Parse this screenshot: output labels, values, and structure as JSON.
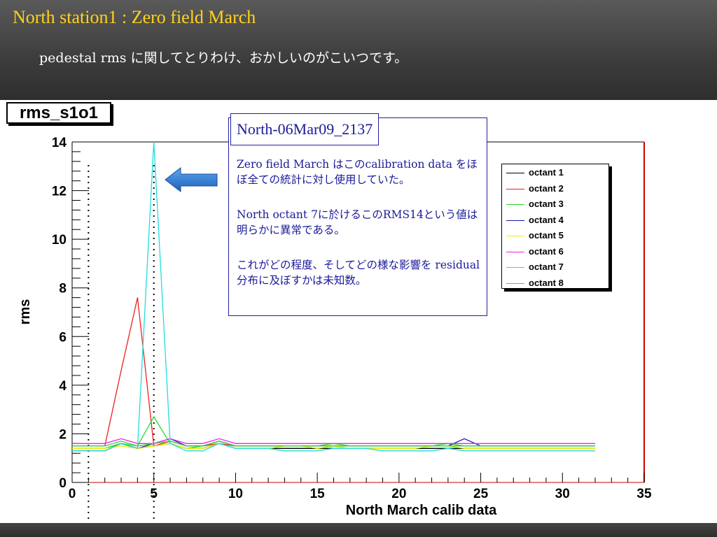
{
  "slide": {
    "title": "North station1 : Zero field March",
    "subtitle": "pedestal rms に関してとりわけ、おかしいのがこいつです。"
  },
  "histogram_name": "rms_s1o1",
  "annotation": {
    "title": "North-06Mar09_2137",
    "paragraphs": [
      "Zero field March はこのcalibration data をほぼ全ての統計に対し使用していた。",
      "North octant 7に於けるこのRMS14という値は明らかに異常である。",
      "これがどの程度、そしてどの様な影響を residual 分布に及ぼすかは未知数。"
    ]
  },
  "colors": {
    "title": "#ffd21a",
    "annotation_text": "#1a1a9a",
    "arrow": "#1f6fc8",
    "frame_right": "#cc0000"
  },
  "chart_data": {
    "type": "line",
    "xlabel": "North March calib data",
    "ylabel": "rms",
    "xlim": [
      0,
      35
    ],
    "ylim": [
      0,
      14
    ],
    "x_ticks": [
      0,
      5,
      10,
      15,
      20,
      25,
      30,
      35
    ],
    "y_ticks": [
      0,
      2,
      4,
      6,
      8,
      10,
      12,
      14
    ],
    "vertical_markers": [
      1,
      5
    ],
    "x": [
      0,
      1,
      2,
      3,
      4,
      5,
      6,
      7,
      8,
      9,
      10,
      11,
      12,
      13,
      14,
      15,
      16,
      17,
      18,
      19,
      20,
      21,
      22,
      23,
      24,
      25,
      26,
      27,
      28,
      29,
      30,
      31,
      32
    ],
    "legend_position": "top-right",
    "series": [
      {
        "name": "octant 1",
        "color": "#000000",
        "values": [
          1.4,
          1.4,
          1.4,
          1.6,
          1.4,
          1.5,
          1.6,
          1.4,
          1.4,
          1.6,
          1.4,
          1.4,
          1.4,
          1.4,
          1.4,
          1.4,
          1.4,
          1.4,
          1.4,
          1.4,
          1.4,
          1.4,
          1.4,
          1.4,
          1.4,
          1.4,
          1.4,
          1.4,
          1.4,
          1.4,
          1.4,
          1.4,
          1.4
        ]
      },
      {
        "name": "octant 2",
        "color": "#ee2020",
        "values": [
          1.5,
          1.5,
          1.5,
          4.6,
          7.6,
          1.5,
          1.7,
          1.5,
          1.5,
          1.6,
          1.5,
          1.5,
          1.5,
          1.5,
          1.5,
          1.5,
          1.5,
          1.5,
          1.5,
          1.5,
          1.5,
          1.5,
          1.5,
          1.5,
          1.5,
          1.5,
          1.5,
          1.5,
          1.5,
          1.5,
          1.5,
          1.5,
          1.5
        ]
      },
      {
        "name": "octant 3",
        "color": "#22dd22",
        "values": [
          1.4,
          1.4,
          1.4,
          1.6,
          1.5,
          2.7,
          1.6,
          1.4,
          1.5,
          1.7,
          1.5,
          1.5,
          1.5,
          1.5,
          1.5,
          1.5,
          1.6,
          1.5,
          1.5,
          1.5,
          1.5,
          1.5,
          1.5,
          1.6,
          1.5,
          1.5,
          1.5,
          1.5,
          1.5,
          1.5,
          1.5,
          1.5,
          1.5
        ]
      },
      {
        "name": "octant 4",
        "color": "#1a1aaa",
        "values": [
          1.3,
          1.3,
          1.3,
          1.6,
          1.4,
          1.6,
          1.8,
          1.5,
          1.5,
          1.7,
          1.5,
          1.5,
          1.5,
          1.5,
          1.5,
          1.5,
          1.5,
          1.5,
          1.5,
          1.5,
          1.5,
          1.5,
          1.5,
          1.5,
          1.8,
          1.5,
          1.5,
          1.5,
          1.5,
          1.5,
          1.5,
          1.5,
          1.5
        ]
      },
      {
        "name": "octant 5",
        "color": "#eeee00",
        "values": [
          1.4,
          1.4,
          1.4,
          1.5,
          1.4,
          1.5,
          1.6,
          1.4,
          1.4,
          1.6,
          1.4,
          1.4,
          1.4,
          1.5,
          1.5,
          1.4,
          1.5,
          1.4,
          1.4,
          1.4,
          1.4,
          1.4,
          1.5,
          1.5,
          1.4,
          1.4,
          1.4,
          1.4,
          1.4,
          1.4,
          1.4,
          1.4,
          1.4
        ]
      },
      {
        "name": "octant 6",
        "color": "#ee22ee",
        "values": [
          1.6,
          1.6,
          1.6,
          1.8,
          1.6,
          1.6,
          1.8,
          1.6,
          1.6,
          1.8,
          1.6,
          1.6,
          1.6,
          1.6,
          1.6,
          1.6,
          1.6,
          1.6,
          1.6,
          1.6,
          1.6,
          1.6,
          1.6,
          1.6,
          1.6,
          1.6,
          1.6,
          1.6,
          1.6,
          1.6,
          1.6,
          1.6,
          1.6
        ]
      },
      {
        "name": "octant 7",
        "color": "#22dddd",
        "values": [
          1.3,
          1.3,
          1.3,
          1.6,
          1.4,
          14,
          1.6,
          1.3,
          1.3,
          1.6,
          1.4,
          1.4,
          1.4,
          1.3,
          1.3,
          1.3,
          1.4,
          1.4,
          1.4,
          1.3,
          1.3,
          1.3,
          1.3,
          1.4,
          1.3,
          1.3,
          1.3,
          1.3,
          1.3,
          1.3,
          1.3,
          1.3,
          1.3
        ]
      },
      {
        "name": "octant 8",
        "color": "#44cc44",
        "values": [
          1.5,
          1.5,
          1.5,
          1.7,
          1.5,
          1.6,
          1.7,
          1.5,
          1.5,
          1.7,
          1.5,
          1.5,
          1.5,
          1.5,
          1.5,
          1.5,
          1.5,
          1.5,
          1.5,
          1.5,
          1.5,
          1.5,
          1.5,
          1.5,
          1.5,
          1.5,
          1.5,
          1.5,
          1.5,
          1.5,
          1.5,
          1.5,
          1.5
        ]
      }
    ]
  }
}
